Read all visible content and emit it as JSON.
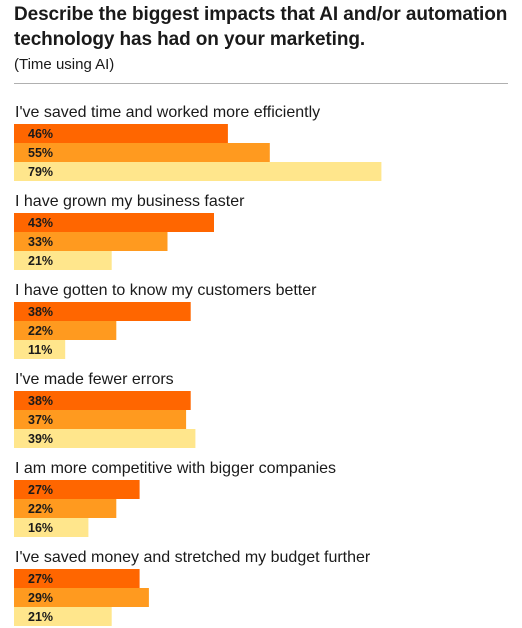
{
  "chart_data": {
    "type": "bar",
    "orientation": "horizontal",
    "title": "Describe the biggest impacts that AI and/or automation technology has had on your marketing.",
    "subtitle": "(Time using AI)",
    "categories": [
      "I've saved time and worked more efficiently",
      "I have grown my business faster",
      "I have gotten to know my customers better",
      "I've made fewer errors",
      "I am more competitive with bigger companies",
      "I've saved money and stretched my budget further"
    ],
    "series": [
      {
        "values": [
          46,
          43,
          38,
          38,
          27,
          27
        ],
        "color": "#ff6600"
      },
      {
        "values": [
          55,
          33,
          22,
          37,
          22,
          29
        ],
        "color": "#ff9a1f"
      },
      {
        "values": [
          79,
          21,
          11,
          39,
          16,
          21
        ],
        "color": "#ffe68c"
      }
    ],
    "value_suffix": "%",
    "xlim": [
      0,
      100
    ],
    "grid": false,
    "legend": "none"
  }
}
